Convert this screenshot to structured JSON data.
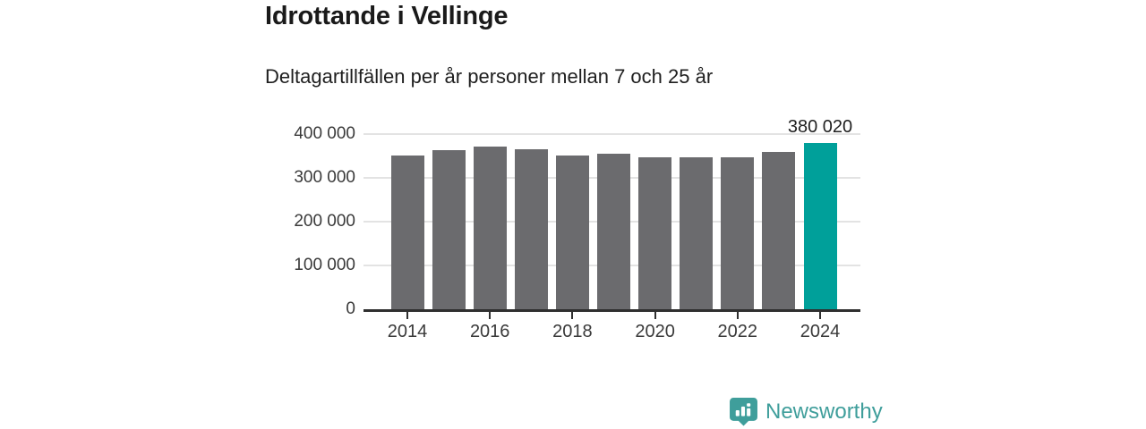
{
  "header": {
    "title": "Idrottande i Vellinge",
    "subtitle": "Deltagartillfällen per år personer mellan 7 och 25 år"
  },
  "chart_data": {
    "type": "bar",
    "title": "Idrottande i Vellinge",
    "subtitle": "Deltagartillfällen per år personer mellan 7 och 25 år",
    "categories": [
      "2014",
      "2015",
      "2016",
      "2017",
      "2018",
      "2019",
      "2020",
      "2021",
      "2022",
      "2023",
      "2024"
    ],
    "values": [
      351000,
      363000,
      371000,
      366000,
      352000,
      355000,
      346000,
      347000,
      347000,
      359000,
      380020
    ],
    "highlight_index": 10,
    "value_label": {
      "index": 10,
      "text": "380 020"
    },
    "xlabel": "",
    "ylabel": "",
    "ylim": [
      0,
      400000
    ],
    "yticks": [
      0,
      100000,
      200000,
      300000,
      400000
    ],
    "ytick_labels": [
      "0",
      "100 000",
      "200 000",
      "300 000",
      "400 000"
    ],
    "xtick_labels": [
      "2014",
      "2016",
      "2018",
      "2020",
      "2022",
      "2024"
    ],
    "xtick_every": 2,
    "grid": true,
    "legend": "none",
    "bar_color": "#6b6b6e",
    "highlight_color": "#00a09a",
    "gridline_color": "#e3e3e3",
    "axis_color": "#2f2f2f",
    "text_color": "#3a3a3a"
  },
  "footer": {
    "brand": "Newsworthy",
    "brand_color": "#3f9e9b",
    "logo_icon": "bar-chart-speech-bubble-icon"
  }
}
